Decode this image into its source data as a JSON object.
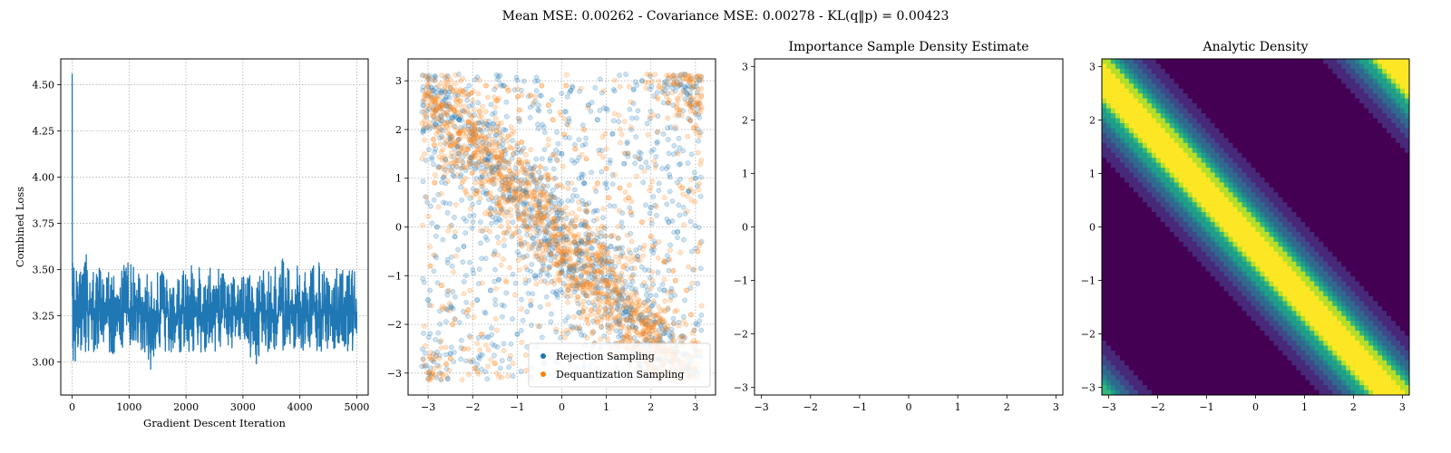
{
  "figure": {
    "suptitle": "Mean MSE: 0.00262 - Covariance MSE: 0.00278 - KL(q‖p) = 0.00423"
  },
  "colors": {
    "blue": "#1f77b4",
    "orange": "#ff7f0e",
    "viridis": [
      "#440154",
      "#482878",
      "#3e4989",
      "#31688e",
      "#26828e",
      "#1f9e89",
      "#35b779",
      "#6ece58",
      "#b5de2b",
      "#fde725"
    ]
  },
  "chart_data": [
    {
      "type": "line",
      "title": "",
      "xlabel": "Gradient Descent Iteration",
      "ylabel": "Combined Loss",
      "xlim": [
        -200,
        5200
      ],
      "ylim": [
        2.82,
        4.64
      ],
      "xticks": [
        0,
        1000,
        2000,
        3000,
        4000,
        5000
      ],
      "xtick_labels": [
        "0",
        "1000",
        "2000",
        "3000",
        "4000",
        "5000"
      ],
      "yticks": [
        3.0,
        3.25,
        3.5,
        3.75,
        4.0,
        4.25,
        4.5
      ],
      "ytick_labels": [
        "3.00",
        "3.25",
        "3.50",
        "3.75",
        "4.00",
        "4.25",
        "4.50"
      ],
      "grid": true,
      "series": [
        {
          "color": "#1f77b4",
          "x": [
            0,
            5,
            10,
            20,
            40,
            60,
            80,
            100,
            150,
            200,
            300,
            400,
            500,
            600,
            700,
            800,
            900,
            1000,
            1100,
            1200,
            1300,
            1400,
            1500,
            1600,
            1700,
            1800,
            1900,
            2000,
            2100,
            2200,
            2300,
            2400,
            2500,
            2600,
            2700,
            2800,
            2900,
            3000,
            3100,
            3200,
            3300,
            3400,
            3500,
            3600,
            3700,
            3800,
            3900,
            4000,
            4100,
            4200,
            4300,
            4400,
            4500,
            4600,
            4700,
            4800,
            4900,
            5000
          ],
          "y": [
            4.56,
            3.4,
            3.18,
            3.35,
            3.3,
            3.27,
            3.3,
            3.28,
            3.26,
            3.28,
            3.27,
            3.26,
            3.28,
            3.27,
            3.26,
            3.27,
            3.28,
            3.26,
            3.27,
            3.28,
            3.26,
            3.27,
            3.26,
            3.28,
            3.27,
            3.26,
            3.27,
            3.26,
            3.28,
            3.27,
            3.26,
            3.27,
            3.28,
            3.26,
            3.27,
            3.26,
            3.27,
            3.28,
            3.26,
            3.27,
            3.26,
            3.28,
            3.27,
            3.26,
            3.27,
            3.28,
            3.26,
            3.27,
            3.26,
            3.28,
            3.27,
            3.26,
            3.27,
            3.26,
            3.28,
            3.27,
            3.26,
            3.27
          ],
          "band_low": [
            4.56,
            3.0,
            3.05,
            3.0,
            3.06,
            2.98,
            3.05,
            3.08,
            3.02,
            3.05,
            3.06,
            3.05,
            3.06,
            3.05,
            3.03,
            3.05,
            3.06,
            3.06,
            3.08,
            3.05,
            3.04,
            2.92,
            3.03,
            3.06,
            3.05,
            3.06,
            3.05,
            3.06,
            3.05,
            3.05,
            3.04,
            3.06,
            3.05,
            3.06,
            3.05,
            3.03,
            3.06,
            3.05,
            3.06,
            2.95,
            3.05,
            3.06,
            3.05,
            3.03,
            3.05,
            3.05,
            3.06,
            3.05,
            3.04,
            3.06,
            3.06,
            3.05,
            3.05,
            3.06,
            3.05,
            3.06,
            3.0,
            3.02
          ],
          "band_high": [
            4.56,
            3.55,
            3.58,
            3.6,
            3.6,
            3.5,
            3.52,
            3.55,
            3.5,
            3.65,
            3.52,
            3.52,
            3.55,
            3.5,
            3.52,
            3.5,
            3.52,
            3.54,
            3.52,
            3.5,
            3.54,
            3.5,
            3.52,
            3.5,
            3.52,
            3.5,
            3.52,
            3.5,
            3.55,
            3.52,
            3.5,
            3.52,
            3.5,
            3.52,
            3.5,
            3.5,
            3.52,
            3.5,
            3.5,
            3.52,
            3.5,
            3.52,
            3.54,
            3.52,
            3.56,
            3.54,
            3.55,
            3.52,
            3.5,
            3.52,
            3.55,
            3.52,
            3.5,
            3.52,
            3.52,
            3.5,
            3.52,
            3.5
          ]
        }
      ]
    },
    {
      "type": "scatter",
      "title": "",
      "xlabel": "",
      "ylabel": "",
      "xlim": [
        -3.45,
        3.45
      ],
      "ylim": [
        -3.45,
        3.45
      ],
      "xticks": [
        -3,
        -2,
        -1,
        0,
        1,
        2,
        3
      ],
      "xtick_labels": [
        "−3",
        "−2",
        "−1",
        "0",
        "1",
        "2",
        "3"
      ],
      "yticks": [
        -3,
        -2,
        -1,
        0,
        1,
        2,
        3
      ],
      "ytick_labels": [
        "−3",
        "−2",
        "−1",
        "0",
        "1",
        "2",
        "3"
      ],
      "grid": true,
      "legend_position": "bottom-right",
      "alpha": 0.25,
      "series": [
        {
          "name": "Rejection Sampling",
          "color": "#1f77b4",
          "x": [
            -2.9,
            -2.6,
            -2.3,
            -2.0,
            -1.7,
            -1.4,
            -1.1,
            -0.8,
            -0.5,
            -0.2,
            0.1,
            0.4,
            0.7,
            1.0,
            1.3,
            1.6,
            1.9,
            2.2,
            2.5,
            2.8,
            -2.8,
            -2.2,
            -1.6,
            -1.0,
            -0.4,
            0.2,
            0.8,
            1.4,
            2.0,
            2.6,
            -2.5,
            -1.9,
            -1.3,
            -0.7,
            -0.1,
            0.5,
            1.1,
            1.7,
            2.3,
            2.9,
            0.0,
            -3.0,
            3.0,
            -0.6,
            0.6,
            -1.2,
            1.2,
            2.4,
            -2.4,
            1.8
          ],
          "y": [
            2.8,
            2.5,
            2.2,
            1.9,
            1.6,
            1.3,
            1.0,
            0.7,
            0.4,
            0.1,
            -0.2,
            -0.5,
            -0.8,
            -1.1,
            -1.4,
            -1.7,
            -2.0,
            -2.3,
            -2.6,
            -2.9,
            0.0,
            -0.4,
            -1.3,
            -2.2,
            -2.8,
            2.8,
            2.2,
            1.3,
            0.4,
            -0.1,
            -2.6,
            -1.5,
            2.9,
            1.2,
            0.3,
            0.9,
            -0.4,
            -0.6,
            -1.3,
            2.6,
            1.5,
            -1.5,
            1.0,
            -1.0,
            2.5,
            0.8,
            -2.7,
            0.1,
            -0.2,
            3.0
          ]
        },
        {
          "name": "Dequantization Sampling",
          "color": "#ff7f0e",
          "x": [
            -2.95,
            -2.7,
            -2.45,
            -2.2,
            -1.95,
            -1.7,
            -1.45,
            -1.2,
            -0.95,
            -0.7,
            -0.45,
            -0.2,
            0.05,
            0.3,
            0.55,
            0.8,
            1.05,
            1.3,
            1.55,
            1.8,
            2.05,
            2.3,
            2.55,
            2.8,
            3.05,
            -2.9,
            -2.5,
            -2.1,
            -1.8,
            -1.5,
            -0.3,
            0.1,
            0.5,
            1.0,
            1.5,
            2.0,
            2.5,
            2.9,
            3.0,
            2.7
          ],
          "y": [
            -0.8,
            -1.2,
            -2.0,
            -2.5,
            -2.9,
            2.9,
            2.6,
            2.8,
            2.4,
            2.7,
            2.9,
            2.2,
            1.9,
            1.6,
            1.4,
            0.9,
            0.6,
            0.8,
            0.3,
            0.1,
            -0.4,
            -0.7,
            -1.1,
            -1.3,
            -0.5,
            -3.0,
            -2.7,
            -1.7,
            -2.2,
            -2.8,
            2.5,
            2.9,
            2.0,
            1.2,
            0.6,
            -0.2,
            -0.9,
            -1.8,
            -2.9,
            0.8
          ]
        }
      ]
    },
    {
      "type": "contour",
      "title": "Importance Sample Density Estimate",
      "xlabel": "",
      "ylabel": "",
      "xlim": [
        -3.14159,
        3.14159
      ],
      "ylim": [
        -3.14159,
        3.14159
      ],
      "xticks": [
        -3,
        -2,
        -1,
        0,
        1,
        2,
        3
      ],
      "xtick_labels": [
        "−3",
        "−2",
        "−1",
        "0",
        "1",
        "2",
        "3"
      ],
      "yticks": [
        -3,
        -2,
        -1,
        0,
        1,
        2,
        3
      ],
      "ytick_labels": [
        "−3",
        "−2",
        "−1",
        "0",
        "1",
        "2",
        "3"
      ],
      "levels": 7,
      "colormap": "viridis"
    },
    {
      "type": "contour",
      "title": "Analytic Density",
      "xlabel": "",
      "ylabel": "",
      "xlim": [
        -3.14159,
        3.14159
      ],
      "ylim": [
        -3.14159,
        3.14159
      ],
      "xticks": [
        -3,
        -2,
        -1,
        0,
        1,
        2,
        3
      ],
      "xtick_labels": [
        "−3",
        "−2",
        "−1",
        "0",
        "1",
        "2",
        "3"
      ],
      "yticks": [
        -3,
        -2,
        -1,
        0,
        1,
        2,
        3
      ],
      "ytick_labels": [
        "−3",
        "−2",
        "−1",
        "0",
        "1",
        "2",
        "3"
      ],
      "levels": 9,
      "colormap": "viridis"
    }
  ]
}
